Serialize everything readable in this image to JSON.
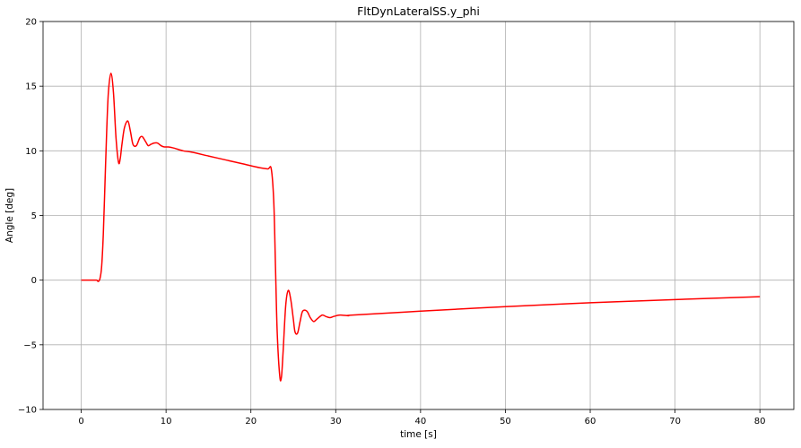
{
  "chart_data": {
    "type": "line",
    "title": "FltDynLateralSS.y_phi",
    "xlabel": "time [s]",
    "ylabel": "Angle [deg]",
    "xlim": [
      -4.5,
      84
    ],
    "ylim": [
      -10,
      20
    ],
    "xticks": [
      0,
      10,
      20,
      30,
      40,
      50,
      60,
      70,
      80
    ],
    "yticks": [
      -10,
      -5,
      0,
      5,
      10,
      15,
      20
    ],
    "xtick_labels": [
      "0",
      "10",
      "20",
      "30",
      "40",
      "50",
      "60",
      "70",
      "80"
    ],
    "ytick_labels": [
      "−10",
      "−5",
      "0",
      "5",
      "10",
      "15",
      "20"
    ],
    "grid": true,
    "line_color": "#ff0000",
    "series": [
      {
        "x": [
          0,
          1.0,
          1.8,
          2.0,
          2.2,
          2.4,
          2.6,
          2.8,
          3.0,
          3.2,
          3.5,
          3.8,
          4.1,
          4.4,
          4.6,
          4.8,
          5.1,
          5.5,
          5.8,
          6.1,
          6.5,
          6.9,
          7.2,
          7.6,
          7.9,
          8.2,
          8.6,
          9.0,
          9.4,
          9.8,
          10.3,
          11.0,
          12.0,
          13.0,
          15.0,
          17.0,
          19.0,
          21.0,
          22.0,
          22.4,
          22.7,
          22.9,
          23.1,
          23.4,
          23.6,
          23.8,
          24.1,
          24.4,
          24.7,
          25.0,
          25.2,
          25.5,
          25.8,
          26.1,
          26.6,
          27.0,
          27.4,
          27.8,
          28.4,
          28.8,
          29.3,
          29.8,
          30.5,
          31.5,
          32.0,
          40,
          50,
          60,
          70,
          80
        ],
        "y": [
          0,
          0,
          0,
          -0.1,
          0.1,
          1.0,
          3.5,
          7.5,
          11.5,
          14.5,
          16.0,
          14.5,
          11.0,
          9.1,
          9.4,
          10.5,
          11.8,
          12.3,
          11.5,
          10.5,
          10.4,
          11.0,
          11.1,
          10.7,
          10.4,
          10.5,
          10.6,
          10.6,
          10.4,
          10.3,
          10.3,
          10.2,
          10.0,
          9.9,
          9.6,
          9.3,
          9.0,
          8.7,
          8.6,
          8.6,
          6.0,
          1.0,
          -4.0,
          -7.4,
          -7.5,
          -5.5,
          -2.0,
          -0.8,
          -1.5,
          -3.0,
          -4.0,
          -4.1,
          -3.2,
          -2.4,
          -2.4,
          -2.9,
          -3.2,
          -3.0,
          -2.7,
          -2.8,
          -2.9,
          -2.8,
          -2.7,
          -2.75,
          -2.7,
          -2.4,
          -2.05,
          -1.75,
          -1.5,
          -1.28
        ]
      }
    ]
  }
}
